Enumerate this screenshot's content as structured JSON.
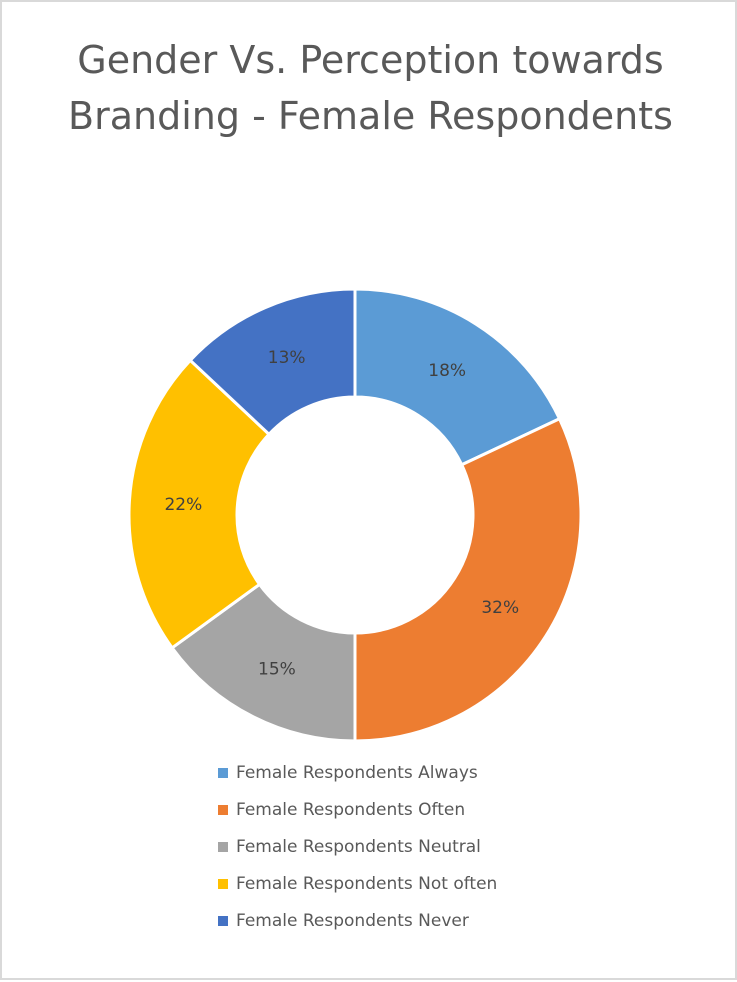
{
  "chart_data": {
    "type": "pie",
    "variant": "donut",
    "title": "Gender Vs. Perception towards Branding - Female Respondents",
    "categories": [
      "Female Respondents Always",
      "Female Respondents Often",
      "Female Respondents Neutral",
      "Female Respondents Not often",
      "Female Respondents Never"
    ],
    "values": [
      18,
      32,
      15,
      22,
      13
    ],
    "value_labels": [
      "18%",
      "32%",
      "15%",
      "22%",
      "13%"
    ],
    "colors": [
      "#5b9bd5",
      "#ed7d31",
      "#a5a5a5",
      "#ffc000",
      "#4472c4"
    ],
    "legend_position": "bottom"
  }
}
